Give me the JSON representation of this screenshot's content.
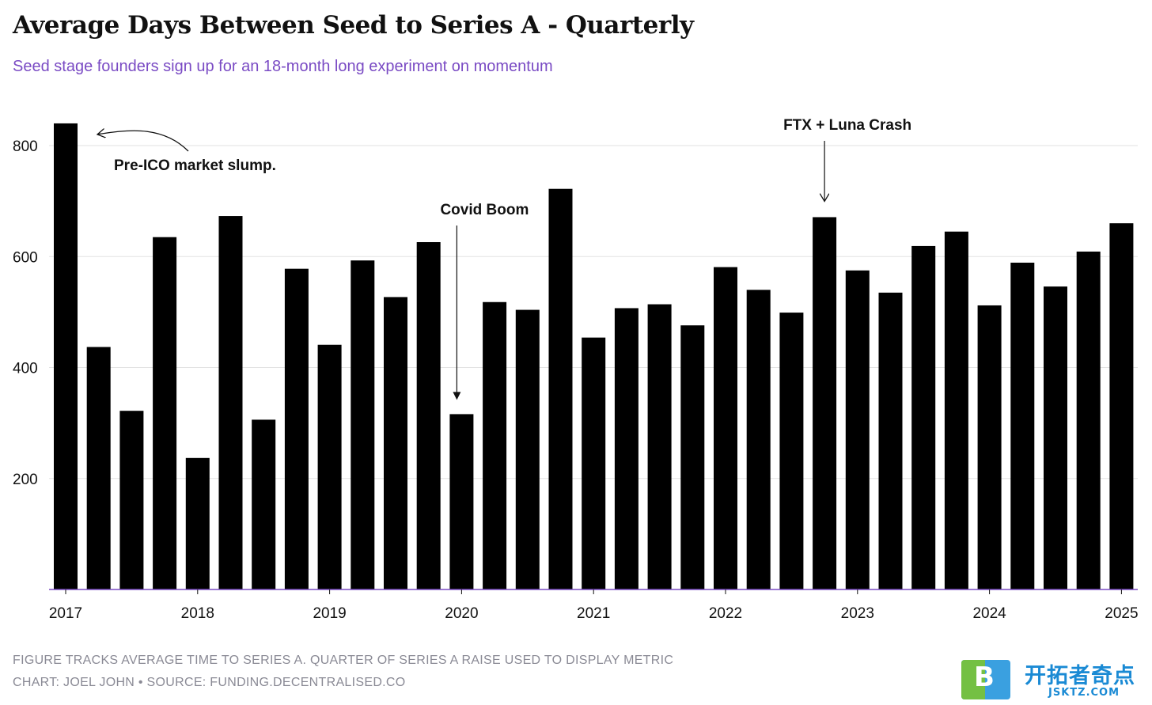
{
  "title": "Average Days Between Seed to Series A - Quarterly",
  "subtitle": "Seed stage founders sign up for an 18-month long experiment on momentum",
  "footer": {
    "note": "FIGURE TRACKS AVERAGE TIME TO SERIES A. QUARTER OF SERIES A RAISE USED TO DISPLAY METRIC",
    "credit": "CHART: JOEL JOHN • SOURCE: FUNDING.DECENTRALISED.CO"
  },
  "watermark": {
    "badge": "B",
    "text_cn": "开拓者奇点",
    "text_en": "JSKTZ.COM"
  },
  "colors": {
    "bar": "#000000",
    "subtitle": "#7a4bc4",
    "baseline": "#7a4bc4",
    "grid": "#e2e2e2"
  },
  "chart_data": {
    "type": "bar",
    "title": "Average Days Between Seed to Series A - Quarterly",
    "xlabel": "",
    "ylabel": "",
    "ylim": [
      0,
      860
    ],
    "yticks": [
      200,
      400,
      600,
      800
    ],
    "grid": true,
    "categories": [
      "2017 Q1",
      "2017 Q2",
      "2017 Q3",
      "2017 Q4",
      "2018 Q1",
      "2018 Q2",
      "2018 Q3",
      "2018 Q4",
      "2019 Q1",
      "2019 Q2",
      "2019 Q3",
      "2019 Q4",
      "2020 Q1",
      "2020 Q2",
      "2020 Q3",
      "2020 Q4",
      "2021 Q1",
      "2021 Q2",
      "2021 Q3",
      "2021 Q4",
      "2022 Q1",
      "2022 Q2",
      "2022 Q3",
      "2022 Q4",
      "2023 Q1",
      "2023 Q2",
      "2023 Q3",
      "2023 Q4",
      "2024 Q1",
      "2024 Q2",
      "2024 Q3",
      "2024 Q4",
      "2025 Q1"
    ],
    "values": [
      840,
      437,
      322,
      635,
      237,
      673,
      306,
      578,
      441,
      593,
      527,
      626,
      316,
      518,
      504,
      722,
      454,
      507,
      514,
      476,
      581,
      540,
      499,
      671,
      575,
      535,
      619,
      645,
      512,
      589,
      546,
      609,
      660
    ],
    "xtick_labels": [
      "2017",
      "2018",
      "2019",
      "2020",
      "2021",
      "2022",
      "2023",
      "2024",
      "2025"
    ],
    "annotations": [
      {
        "text": "Pre-ICO market slump.",
        "category": "2017 Q1",
        "arrow": "curved-left"
      },
      {
        "text": "Covid Boom",
        "category": "2020 Q1",
        "arrow": "down"
      },
      {
        "text": "FTX + Luna Crash",
        "category": "2022 Q4",
        "arrow": "down"
      }
    ]
  }
}
